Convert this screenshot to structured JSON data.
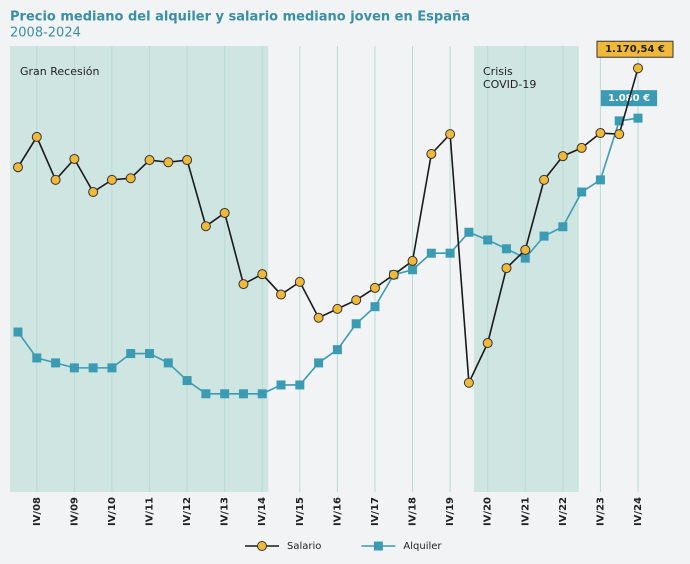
{
  "chart_data": {
    "type": "line",
    "title": "Precio mediano del alquiler y salario mediano joven en España",
    "subtitle": "2008-2024",
    "categories": [
      null,
      "IV/08",
      null,
      "IV/09",
      null,
      "IV/10",
      null,
      "IV/11",
      null,
      "IV/12",
      null,
      "IV/13",
      null,
      "IV/14",
      null,
      "IV/15",
      null,
      "IV/16",
      null,
      "IV/17",
      null,
      "IV/18",
      null,
      "IV/19",
      null,
      "IV/20",
      null,
      "IV/21",
      null,
      "IV/22",
      null,
      "IV/23",
      null,
      "IV/24"
    ],
    "series": [
      {
        "name": "Salario",
        "color": "#1a1a1a",
        "marker_color": "#f0b93a",
        "marker": "circle",
        "values": [
          991,
          1046,
          968,
          1006,
          946,
          968,
          971,
          1004,
          1000,
          1004,
          884,
          908,
          779,
          797,
          760,
          783,
          718,
          734,
          750,
          772,
          796,
          821,
          1015,
          1051,
          600,
          672,
          808,
          841,
          968,
          1011,
          1026,
          1053,
          1051,
          1170.54
        ],
        "value_labels": [
          null,
          null,
          null,
          null,
          null,
          null,
          null,
          null,
          null,
          null,
          null,
          null,
          null,
          null,
          null,
          null,
          null,
          null,
          null,
          null,
          null,
          null,
          null,
          null,
          null,
          null,
          null,
          null,
          null,
          null,
          null,
          null,
          null,
          "1.170,54 €"
        ]
      },
      {
        "name": "Alquiler",
        "color": "#3b9bb3",
        "marker_color": "#3b9bb3",
        "marker": "square",
        "values": [
          692,
          645,
          636,
          627,
          627,
          627,
          653,
          653,
          636,
          604,
          580,
          580,
          580,
          580,
          596,
          596,
          636,
          660,
          707,
          738,
          796,
          805,
          835,
          835,
          873,
          859,
          843,
          826,
          866,
          883,
          946,
          968,
          1075,
          1080
        ],
        "value_labels": [
          null,
          null,
          null,
          null,
          null,
          null,
          null,
          null,
          null,
          null,
          null,
          null,
          null,
          null,
          null,
          null,
          null,
          null,
          null,
          null,
          null,
          null,
          null,
          null,
          null,
          null,
          null,
          null,
          null,
          null,
          null,
          null,
          null,
          "1.080 €"
        ]
      }
    ],
    "ylim": [
      400,
      1200
    ],
    "grid": true,
    "annotations": [
      {
        "lines": [
          "Gran Recesión"
        ]
      },
      {
        "lines": [
          "Crisis",
          "COVID-19"
        ]
      }
    ]
  }
}
